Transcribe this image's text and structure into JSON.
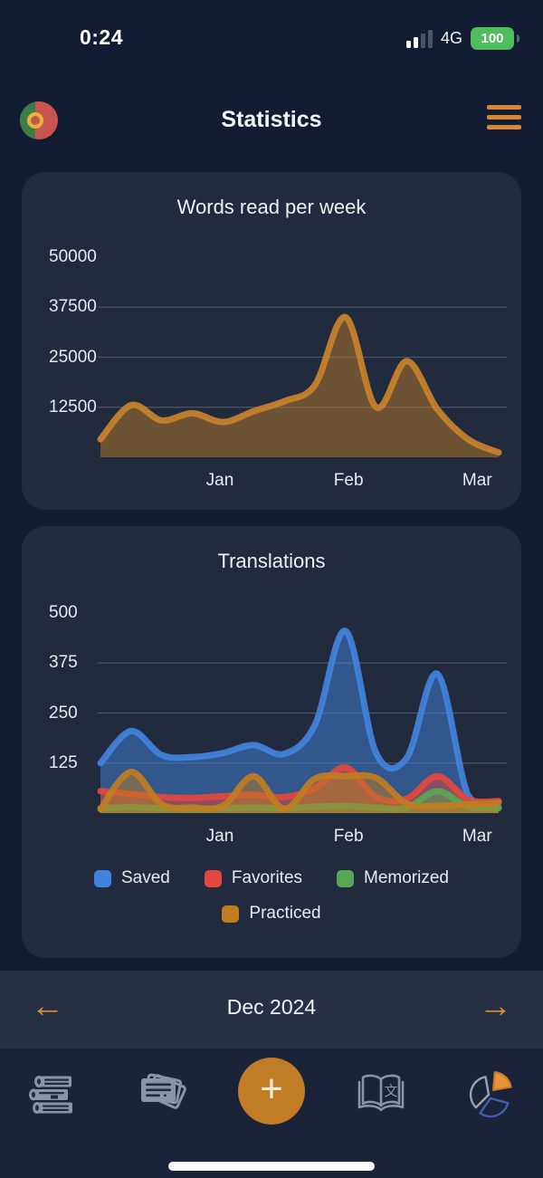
{
  "status_bar": {
    "time": "0:24",
    "network": "4G",
    "battery": "100",
    "signal_icon": "signal-strength-2-of-4",
    "battery_color": "#4fbc5e"
  },
  "header": {
    "title": "Statistics",
    "flag_icon": "portugal-flag",
    "menu_icon": "hamburger-menu",
    "accent_color": "#d9882f"
  },
  "charts": [
    {
      "type": "area",
      "title": "Words read per week",
      "ymax": 50000,
      "yticks": [
        "50000",
        "37500",
        "25000",
        "12500"
      ],
      "ytick_values": [
        50000,
        37500,
        25000,
        12500
      ],
      "weeks_span": 13,
      "months": [
        {
          "label": "Jan",
          "week": 3.9
        },
        {
          "label": "Feb",
          "week": 8.1
        },
        {
          "label": "Mar",
          "week": 12.3
        }
      ],
      "grid": true,
      "legend": false,
      "series": [
        {
          "name": "Words read",
          "color": "#c9832b",
          "fill_opacity": 0.45,
          "values": [
            4500,
            13000,
            9200,
            11000,
            8800,
            11500,
            14000,
            18000,
            35000,
            12500,
            24000,
            12000,
            4500,
            1200
          ]
        }
      ]
    },
    {
      "type": "area",
      "title": "Translations",
      "ymax": 500,
      "yticks": [
        "500",
        "375",
        "250",
        "125"
      ],
      "ytick_values": [
        500,
        375,
        250,
        125
      ],
      "weeks_span": 13,
      "months": [
        {
          "label": "Jan",
          "week": 3.9
        },
        {
          "label": "Feb",
          "week": 8.1
        },
        {
          "label": "Mar",
          "week": 12.3
        }
      ],
      "grid": true,
      "legend": true,
      "series": [
        {
          "name": "Saved",
          "color": "#4183dd",
          "fill_opacity": 0.5,
          "values": [
            125,
            205,
            145,
            140,
            150,
            170,
            148,
            220,
            455,
            150,
            138,
            348,
            45,
            15
          ]
        },
        {
          "name": "Favorites",
          "color": "#e2483d",
          "fill_opacity": 0.5,
          "values": [
            55,
            48,
            40,
            38,
            42,
            46,
            40,
            62,
            114,
            40,
            36,
            92,
            34,
            30
          ]
        },
        {
          "name": "Memorized",
          "color": "#57a756",
          "fill_opacity": 0.5,
          "values": [
            12,
            15,
            12,
            10,
            12,
            14,
            12,
            16,
            18,
            14,
            13,
            55,
            16,
            12
          ]
        },
        {
          "name": "Practiced",
          "color": "#c07d20",
          "fill_opacity": 0.5,
          "values": [
            10,
            103,
            22,
            14,
            18,
            92,
            10,
            86,
            92,
            88,
            24,
            18,
            22,
            26
          ]
        }
      ]
    }
  ],
  "month_nav": {
    "label": "Dec 2024",
    "prev": "←",
    "next": "→"
  },
  "tab_bar": {
    "add_label": "+",
    "items": [
      {
        "icon": "books-icon",
        "name": "library"
      },
      {
        "icon": "flashcards-icon",
        "name": "flashcards"
      },
      {
        "icon": "plus-icon",
        "name": "add"
      },
      {
        "icon": "reader-book-icon",
        "name": "reader"
      },
      {
        "icon": "pie-chart-icon",
        "name": "statistics",
        "active": true
      }
    ]
  },
  "chart_data": [
    {
      "type": "area",
      "title": "Words read per week",
      "xlabel": "",
      "ylabel": "",
      "x_unit": "weeks (Dec 2024 - Mar 2025)",
      "x_axis_labels": [
        "Jan",
        "Feb",
        "Mar"
      ],
      "ylim": [
        0,
        50000
      ],
      "yticks": [
        12500,
        25000,
        37500,
        50000
      ],
      "grid": "horizontal",
      "series": [
        {
          "name": "Words read",
          "color": "#c9832b",
          "values": [
            4500,
            13000,
            9200,
            11000,
            8800,
            11500,
            14000,
            18000,
            35000,
            12500,
            24000,
            12000,
            4500,
            1200
          ]
        }
      ]
    },
    {
      "type": "area",
      "title": "Translations",
      "xlabel": "",
      "ylabel": "",
      "x_unit": "weeks (Dec 2024 - Mar 2025)",
      "x_axis_labels": [
        "Jan",
        "Feb",
        "Mar"
      ],
      "ylim": [
        0,
        500
      ],
      "yticks": [
        125,
        250,
        375,
        500
      ],
      "grid": "horizontal",
      "legend_position": "bottom",
      "series": [
        {
          "name": "Saved",
          "color": "#4183dd",
          "values": [
            125,
            205,
            145,
            140,
            150,
            170,
            148,
            220,
            455,
            150,
            138,
            348,
            45,
            15
          ]
        },
        {
          "name": "Favorites",
          "color": "#e2483d",
          "values": [
            55,
            48,
            40,
            38,
            42,
            46,
            40,
            62,
            114,
            40,
            36,
            92,
            34,
            30
          ]
        },
        {
          "name": "Memorized",
          "color": "#57a756",
          "values": [
            12,
            15,
            12,
            10,
            12,
            14,
            12,
            16,
            18,
            14,
            13,
            55,
            16,
            12
          ]
        },
        {
          "name": "Practiced",
          "color": "#c07d20",
          "values": [
            10,
            103,
            22,
            14,
            18,
            92,
            10,
            86,
            92,
            88,
            24,
            18,
            22,
            26
          ]
        }
      ]
    }
  ]
}
